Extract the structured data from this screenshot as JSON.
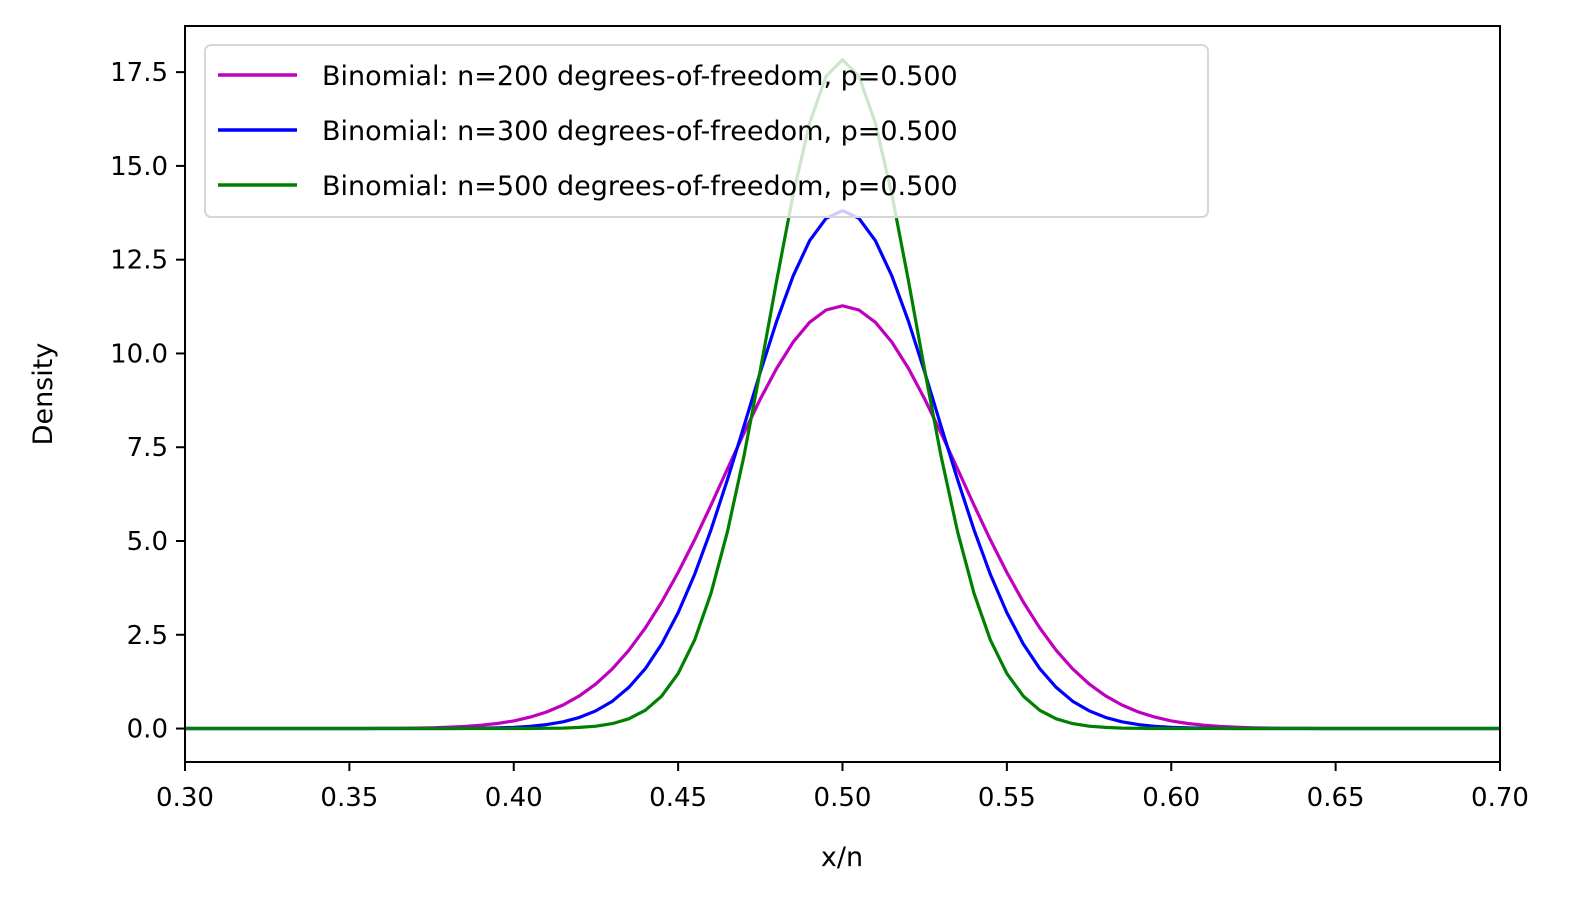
{
  "chart_data": {
    "type": "line",
    "title": "",
    "xlabel": "x/n",
    "ylabel": "Density",
    "xlim": [
      0.3,
      0.7
    ],
    "ylim": [
      -0.892,
      18.73
    ],
    "xticks": [
      "0.30",
      "0.35",
      "0.40",
      "0.45",
      "0.50",
      "0.55",
      "0.60",
      "0.65",
      "0.70"
    ],
    "yticks": [
      "0.0",
      "2.5",
      "5.0",
      "7.5",
      "10.0",
      "12.5",
      "15.0",
      "17.5"
    ],
    "grid": false,
    "legend_position": "top-left",
    "x_grid": {
      "start": 0.3,
      "stop": 0.7,
      "step": 0.005
    },
    "series": [
      {
        "name": "Binomial: n=200 degrees-of-freedom, p=0.500",
        "n": 200,
        "p": 0.5,
        "peak": 11.28,
        "color": "#bf00bf"
      },
      {
        "name": "Binomial: n=300 degrees-of-freedom, p=0.500",
        "n": 300,
        "p": 0.5,
        "peak": 13.82,
        "color": "#0000ff"
      },
      {
        "name": "Binomial: n=500 degrees-of-freedom, p=0.500",
        "n": 500,
        "p": 0.5,
        "peak": 17.84,
        "color": "#008000"
      }
    ]
  }
}
